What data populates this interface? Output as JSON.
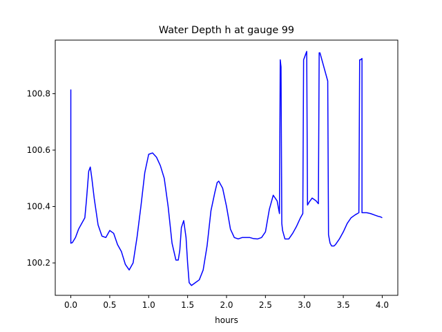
{
  "chart_data": {
    "type": "line",
    "title": "Water Depth h at gauge 99",
    "xlabel": "hours",
    "ylabel": "",
    "xlim": [
      -0.2,
      4.2
    ],
    "ylim": [
      100.085,
      100.99
    ],
    "xticks": [
      0.0,
      0.5,
      1.0,
      1.5,
      2.0,
      2.5,
      3.0,
      3.5,
      4.0
    ],
    "xtick_labels": [
      "0.0",
      "0.5",
      "1.0",
      "1.5",
      "2.0",
      "2.5",
      "3.0",
      "3.5",
      "4.0"
    ],
    "yticks": [
      100.2,
      100.4,
      100.6,
      100.8
    ],
    "ytick_labels": [
      "100.2",
      "100.4",
      "100.6",
      "100.8"
    ],
    "grid": false,
    "legend": "none",
    "series": [
      {
        "color": "#0000ff",
        "x": [
          0.0,
          0.0,
          0.02,
          0.06,
          0.1,
          0.15,
          0.18,
          0.2,
          0.23,
          0.25,
          0.27,
          0.3,
          0.35,
          0.4,
          0.45,
          0.5,
          0.55,
          0.6,
          0.65,
          0.7,
          0.75,
          0.8,
          0.85,
          0.9,
          0.95,
          1.0,
          1.05,
          1.1,
          1.15,
          1.2,
          1.25,
          1.3,
          1.35,
          1.38,
          1.4,
          1.42,
          1.45,
          1.48,
          1.5,
          1.52,
          1.55,
          1.6,
          1.65,
          1.7,
          1.75,
          1.8,
          1.85,
          1.88,
          1.9,
          1.95,
          2.0,
          2.05,
          2.1,
          2.15,
          2.2,
          2.25,
          2.3,
          2.35,
          2.4,
          2.45,
          2.5,
          2.55,
          2.6,
          2.65,
          2.68,
          2.69,
          2.7,
          2.71,
          2.72,
          2.75,
          2.8,
          2.85,
          2.9,
          2.95,
          2.98,
          2.99,
          3.01,
          3.03,
          3.04,
          3.06,
          3.1,
          3.15,
          3.18,
          3.19,
          3.2,
          3.3,
          3.31,
          3.33,
          3.35,
          3.38,
          3.4,
          3.45,
          3.5,
          3.55,
          3.6,
          3.65,
          3.7,
          3.71,
          3.72,
          3.74,
          3.74,
          3.8,
          3.85,
          3.9,
          3.95,
          3.98,
          4.0
        ],
        "y": [
          100.815,
          100.27,
          100.272,
          100.29,
          100.32,
          100.345,
          100.36,
          100.42,
          100.525,
          100.54,
          100.5,
          100.43,
          100.335,
          100.295,
          100.29,
          100.315,
          100.305,
          100.265,
          100.24,
          100.195,
          100.175,
          100.2,
          100.29,
          100.4,
          100.52,
          100.585,
          100.59,
          100.575,
          100.545,
          100.5,
          100.4,
          100.27,
          100.21,
          100.21,
          100.245,
          100.325,
          100.35,
          100.29,
          100.2,
          100.13,
          100.12,
          100.13,
          100.14,
          100.175,
          100.26,
          100.385,
          100.45,
          100.485,
          100.49,
          100.465,
          100.4,
          100.32,
          100.29,
          100.285,
          100.29,
          100.29,
          100.29,
          100.286,
          100.285,
          100.29,
          100.31,
          100.39,
          100.44,
          100.42,
          100.375,
          100.92,
          100.895,
          100.34,
          100.315,
          100.285,
          100.285,
          100.305,
          100.33,
          100.36,
          100.375,
          100.92,
          100.935,
          100.95,
          100.405,
          100.415,
          100.43,
          100.42,
          100.41,
          100.945,
          100.945,
          100.845,
          100.3,
          100.27,
          100.26,
          100.26,
          100.265,
          100.285,
          100.31,
          100.34,
          100.36,
          100.37,
          100.378,
          100.92,
          100.92,
          100.925,
          100.378,
          100.378,
          100.375,
          100.37,
          100.365,
          100.363,
          100.36
        ]
      }
    ]
  }
}
